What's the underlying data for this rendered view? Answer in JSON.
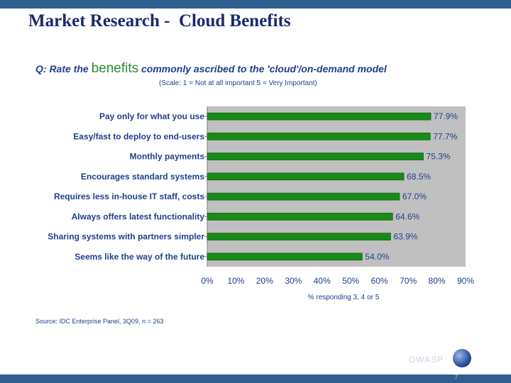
{
  "slide": {
    "title": "Market Research -  Cloud Benefits",
    "question_prefix": "Q: Rate the ",
    "question_emph": "benefits",
    "question_suffix": " commonly ascribed to the 'cloud'/on-demand model",
    "scale_note": "(Scale: 1 = Not at all important  5 = Very Important)",
    "source": "Source: IDC Enterprise Panel, 3Q09, n = 263",
    "footer_logo": "OWASP",
    "page_number": "7"
  },
  "colors": {
    "bar": "#178a17",
    "plot_bg": "#c0c0c0",
    "brand_bar": "#2f5f8f",
    "text": "#1f3f8c"
  },
  "chart_data": {
    "type": "bar",
    "orientation": "horizontal",
    "categories": [
      "Pay only for what you use",
      "Easy/fast to deploy to end-users",
      "Monthly payments",
      "Encourages standard systems",
      "Requires less in-house IT staff, costs",
      "Always offers latest functionality",
      "Sharing systems with partners simpler",
      "Seems like the way of the future"
    ],
    "values": [
      77.9,
      77.7,
      75.3,
      68.5,
      67.0,
      64.6,
      63.9,
      54.0
    ],
    "data_labels": [
      "77.9%",
      "77.7%",
      "75.3%",
      "68.5%",
      "67.0%",
      "64.6%",
      "63.9%",
      "54.0%"
    ],
    "xlim": [
      0,
      90
    ],
    "x_ticks": [
      "0%",
      "10%",
      "20%",
      "30%",
      "40%",
      "50%",
      "60%",
      "70%",
      "80%",
      "90%"
    ],
    "xlabel": "% responding 3, 4 or 5",
    "grid": false
  }
}
